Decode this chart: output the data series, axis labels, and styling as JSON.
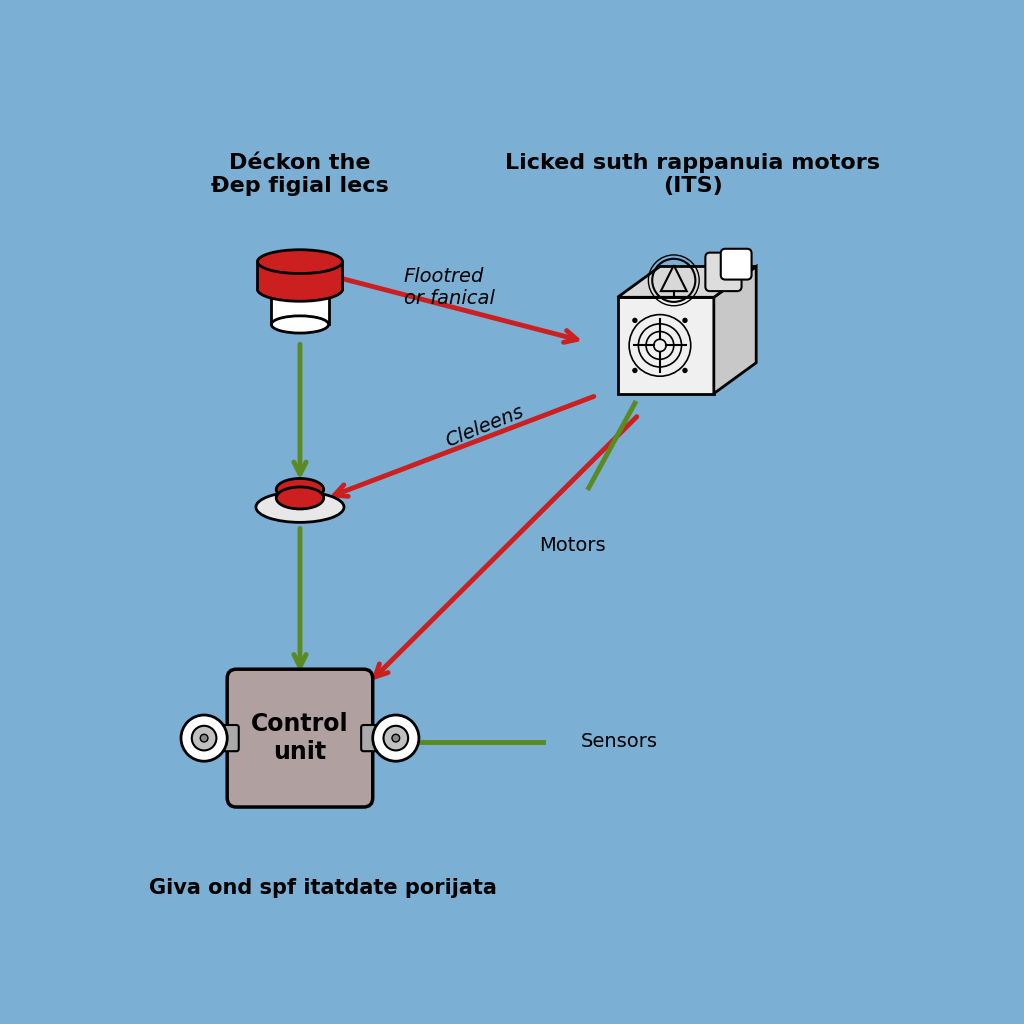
{
  "bg_color": "#7BAFD4",
  "title_left": "Déckon the\nÐep figial lecs",
  "title_right": "Licked suth rappanuia motors\n(ITS)",
  "label_arrow1": "Flootred\nor fanical",
  "label_arrow2": "Cleleens",
  "label_arrow3": "Motors",
  "label_sensors": "Sensors",
  "label_bottom": "Giva ond spf itatdate porijata",
  "control_unit_label": "Control\nunit",
  "red_color": "#CC2020",
  "green_color": "#5A8A20",
  "control_unit_color": "#B0A0A0",
  "ecu_face_color": "#F0F0F0",
  "ecu_top_color": "#D8D8D8",
  "ecu_side_color": "#C8C8C8"
}
